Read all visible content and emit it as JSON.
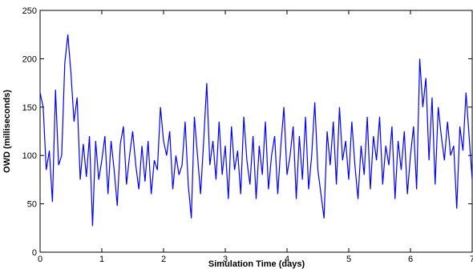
{
  "chart_data": {
    "type": "line",
    "x_label": "Simulation Time (days)",
    "y_label": "OWD (milliseconds)",
    "x": [
      0,
      0.05,
      0.1,
      0.15,
      0.2,
      0.25,
      0.3,
      0.35,
      0.4,
      0.45,
      0.5,
      0.55,
      0.6,
      0.65,
      0.7,
      0.75,
      0.8,
      0.85,
      0.9,
      0.95,
      1,
      1.05,
      1.1,
      1.15,
      1.2,
      1.25,
      1.3,
      1.35,
      1.4,
      1.45,
      1.5,
      1.55,
      1.6,
      1.65,
      1.7,
      1.75,
      1.8,
      1.85,
      1.9,
      1.95,
      2,
      2.05,
      2.1,
      2.15,
      2.2,
      2.25,
      2.3,
      2.35,
      2.4,
      2.45,
      2.5,
      2.55,
      2.6,
      2.65,
      2.7,
      2.75,
      2.8,
      2.85,
      2.9,
      2.95,
      3,
      3.05,
      3.1,
      3.15,
      3.2,
      3.25,
      3.3,
      3.35,
      3.4,
      3.45,
      3.5,
      3.55,
      3.6,
      3.65,
      3.7,
      3.75,
      3.8,
      3.85,
      3.9,
      3.95,
      4,
      4.05,
      4.1,
      4.15,
      4.2,
      4.25,
      4.3,
      4.35,
      4.4,
      4.45,
      4.5,
      4.55,
      4.6,
      4.65,
      4.7,
      4.75,
      4.8,
      4.85,
      4.9,
      4.95,
      5,
      5.05,
      5.1,
      5.15,
      5.2,
      5.25,
      5.3,
      5.35,
      5.4,
      5.45,
      5.5,
      5.55,
      5.6,
      5.65,
      5.7,
      5.75,
      5.8,
      5.85,
      5.9,
      5.95,
      6,
      6.05,
      6.1,
      6.15,
      6.2,
      6.25,
      6.3,
      6.35,
      6.4,
      6.45,
      6.5,
      6.55,
      6.6,
      6.65,
      6.7,
      6.75,
      6.8,
      6.85,
      6.9,
      6.95,
      7
    ],
    "series": [
      {
        "color": "#0000ff",
        "values": [
          165,
          150,
          85,
          105,
          52,
          168,
          90,
          100,
          195,
          225,
          185,
          135,
          160,
          75,
          112,
          78,
          120,
          27,
          115,
          75,
          95,
          120,
          60,
          115,
          85,
          48,
          112,
          130,
          70,
          100,
          125,
          90,
          65,
          110,
          73,
          115,
          60,
          95,
          85,
          150,
          115,
          100,
          125,
          65,
          100,
          80,
          90,
          135,
          70,
          35,
          140,
          100,
          60,
          115,
          175,
          90,
          115,
          75,
          135,
          80,
          110,
          55,
          130,
          85,
          105,
          60,
          140,
          95,
          70,
          120,
          55,
          110,
          80,
          135,
          65,
          100,
          120,
          60,
          110,
          150,
          80,
          100,
          130,
          55,
          120,
          75,
          140,
          65,
          100,
          155,
          85,
          60,
          35,
          125,
          90,
          135,
          70,
          150,
          95,
          115,
          75,
          135,
          90,
          55,
          110,
          80,
          140,
          65,
          120,
          95,
          140,
          70,
          110,
          90,
          130,
          55,
          115,
          85,
          125,
          60,
          100,
          130,
          65,
          200,
          150,
          180,
          95,
          160,
          70,
          150,
          120,
          95,
          135,
          100,
          110,
          45,
          130,
          105,
          165,
          120,
          75
        ]
      }
    ],
    "xlim": [
      0,
      7
    ],
    "ylim": [
      0,
      250
    ],
    "xticks": [
      0,
      1,
      2,
      3,
      4,
      5,
      6,
      7
    ],
    "yticks": [
      0,
      50,
      100,
      150,
      200,
      250
    ]
  }
}
